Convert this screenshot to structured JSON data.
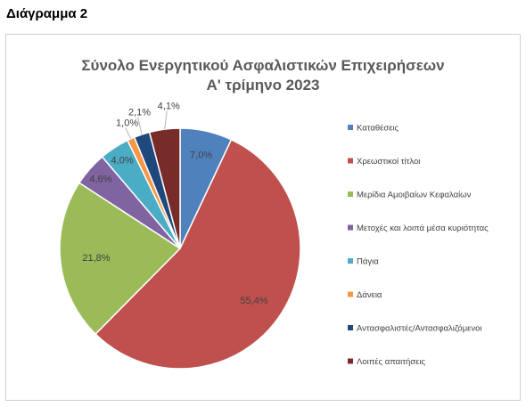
{
  "page": {
    "heading": "Διάγραμμα 2"
  },
  "chart_data": {
    "type": "pie",
    "title": "Σύνολο Ενεργητικού Ασφαλιστικών Επιχειρήσεων",
    "subtitle": "Α' τρίμηνο 2023",
    "legend_position": "right",
    "categories": [
      "Καταθέσεις",
      "Χρεωστικοί τίτλοι",
      "Μερίδια Αμοιβαίων Κεφαλαίων",
      "Μετοχές και λοιπά μέσα κυριότητας",
      "Πάγια",
      "Δάνεια",
      "Αντασφαλιστές/Αντασφαλιζόμενοι",
      "Λοιπές απαιτήσεις"
    ],
    "values": [
      7.0,
      55.4,
      21.8,
      4.6,
      4.0,
      1.0,
      2.1,
      4.1
    ],
    "labels": [
      "7,0%",
      "55,4%",
      "21,8%",
      "4,6%",
      "4,0%",
      "1,0%",
      "2,1%",
      "4,1%"
    ],
    "colors": [
      "#4f81bd",
      "#c0504d",
      "#9bbb59",
      "#8064a2",
      "#4bacc6",
      "#f79646",
      "#1f497d",
      "#772c2a"
    ]
  }
}
